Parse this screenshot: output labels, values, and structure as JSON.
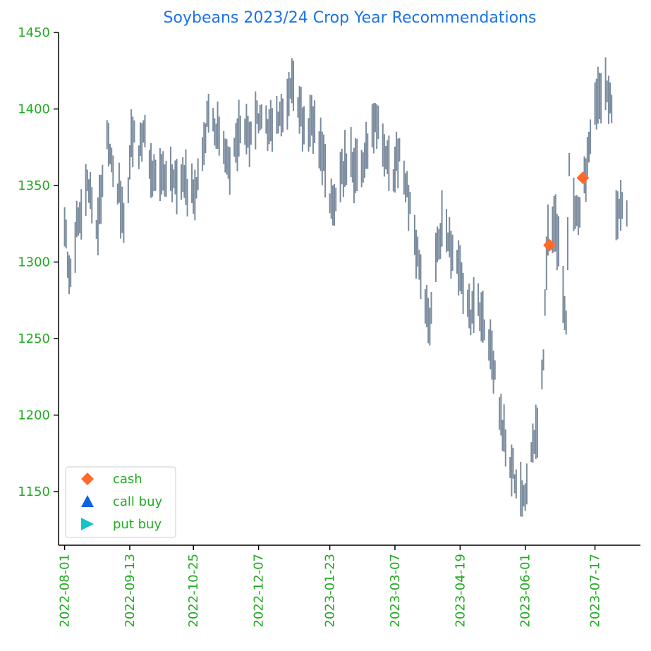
{
  "chart_data": {
    "type": "bar",
    "title": "Soybeans 2023/24 Crop Year Recommendations",
    "xlabel": "",
    "ylabel": "",
    "ylim": [
      1115,
      1450
    ],
    "xlim": [
      "2022-07-28",
      "2023-08-16"
    ],
    "grid": false,
    "legend_position": "bottom-left",
    "colors": {
      "title": "#1a73e8",
      "ticks": "#22aa22",
      "bars": "#7a8b9e",
      "cash": "#ff6a2b",
      "call_buy": "#0d63e0",
      "put_buy": "#17c3c7",
      "axis": "#000000"
    },
    "x_ticks": [
      "2022-08-01",
      "2022-09-13",
      "2022-10-25",
      "2022-12-07",
      "2023-01-23",
      "2023-03-07",
      "2023-04-19",
      "2023-06-01",
      "2023-07-17"
    ],
    "y_ticks": [
      1150,
      1200,
      1250,
      1300,
      1350,
      1400,
      1450
    ],
    "price_anchors": [
      [
        "2022-08-01",
        1330
      ],
      [
        "2022-08-04",
        1285
      ],
      [
        "2022-08-10",
        1330
      ],
      [
        "2022-08-16",
        1350
      ],
      [
        "2022-08-22",
        1325
      ],
      [
        "2022-08-25",
        1340
      ],
      [
        "2022-08-29",
        1385
      ],
      [
        "2022-09-02",
        1360
      ],
      [
        "2022-09-06",
        1345
      ],
      [
        "2022-09-09",
        1330
      ],
      [
        "2022-09-12",
        1340
      ],
      [
        "2022-09-14",
        1385
      ],
      [
        "2022-09-19",
        1375
      ],
      [
        "2022-09-22",
        1385
      ],
      [
        "2022-09-26",
        1360
      ],
      [
        "2022-09-30",
        1350
      ],
      [
        "2022-10-05",
        1355
      ],
      [
        "2022-10-10",
        1360
      ],
      [
        "2022-10-14",
        1350
      ],
      [
        "2022-10-18",
        1360
      ],
      [
        "2022-10-22",
        1345
      ],
      [
        "2022-10-27",
        1350
      ],
      [
        "2022-11-01",
        1380
      ],
      [
        "2022-11-04",
        1395
      ],
      [
        "2022-11-09",
        1385
      ],
      [
        "2022-11-14",
        1375
      ],
      [
        "2022-11-18",
        1365
      ],
      [
        "2022-11-22",
        1380
      ],
      [
        "2022-11-28",
        1385
      ],
      [
        "2022-12-01",
        1375
      ],
      [
        "2022-12-05",
        1390
      ],
      [
        "2022-12-09",
        1395
      ],
      [
        "2022-12-14",
        1385
      ],
      [
        "2022-12-19",
        1390
      ],
      [
        "2022-12-22",
        1395
      ],
      [
        "2022-12-27",
        1410
      ],
      [
        "2022-12-30",
        1420
      ],
      [
        "2023-01-04",
        1395
      ],
      [
        "2023-01-09",
        1385
      ],
      [
        "2023-01-13",
        1395
      ],
      [
        "2023-01-18",
        1370
      ],
      [
        "2023-01-23",
        1345
      ],
      [
        "2023-01-26",
        1335
      ],
      [
        "2023-02-01",
        1360
      ],
      [
        "2023-02-06",
        1365
      ],
      [
        "2023-02-10",
        1360
      ],
      [
        "2023-02-15",
        1370
      ],
      [
        "2023-02-20",
        1385
      ],
      [
        "2023-02-24",
        1395
      ],
      [
        "2023-03-01",
        1370
      ],
      [
        "2023-03-06",
        1360
      ],
      [
        "2023-03-10",
        1375
      ],
      [
        "2023-03-14",
        1355
      ],
      [
        "2023-03-17",
        1335
      ],
      [
        "2023-03-21",
        1305
      ],
      [
        "2023-03-27",
        1275
      ],
      [
        "2023-03-30",
        1260
      ],
      [
        "2023-04-03",
        1300
      ],
      [
        "2023-04-07",
        1325
      ],
      [
        "2023-04-12",
        1310
      ],
      [
        "2023-04-17",
        1305
      ],
      [
        "2023-04-21",
        1280
      ],
      [
        "2023-04-26",
        1265
      ],
      [
        "2023-05-01",
        1270
      ],
      [
        "2023-05-04",
        1260
      ],
      [
        "2023-05-08",
        1250
      ],
      [
        "2023-05-12",
        1225
      ],
      [
        "2023-05-16",
        1195
      ],
      [
        "2023-05-19",
        1180
      ],
      [
        "2023-05-24",
        1165
      ],
      [
        "2023-05-29",
        1150
      ],
      [
        "2023-06-01",
        1140
      ],
      [
        "2023-06-05",
        1180
      ],
      [
        "2023-06-09",
        1185
      ],
      [
        "2023-06-13",
        1240
      ],
      [
        "2023-06-16",
        1320
      ],
      [
        "2023-06-21",
        1330
      ],
      [
        "2023-06-26",
        1275
      ],
      [
        "2023-06-28",
        1265
      ],
      [
        "2023-06-30",
        1360
      ],
      [
        "2023-07-05",
        1330
      ],
      [
        "2023-07-10",
        1350
      ],
      [
        "2023-07-14",
        1380
      ],
      [
        "2023-07-19",
        1410
      ],
      [
        "2023-07-24",
        1420
      ],
      [
        "2023-07-28",
        1395
      ],
      [
        "2023-07-31",
        1330
      ],
      [
        "2023-08-03",
        1335
      ],
      [
        "2023-08-07",
        1330
      ]
    ],
    "gaps": [
      [
        "2023-07-29",
        "2023-07-30"
      ]
    ],
    "series": [
      {
        "name": "cash",
        "marker": "diamond",
        "points": [
          {
            "x": "2023-06-17",
            "y": 1311
          },
          {
            "x": "2023-07-09",
            "y": 1355
          }
        ]
      },
      {
        "name": "call buy",
        "marker": "triangle-up",
        "points": []
      },
      {
        "name": "put buy",
        "marker": "triangle-right",
        "points": []
      }
    ]
  }
}
